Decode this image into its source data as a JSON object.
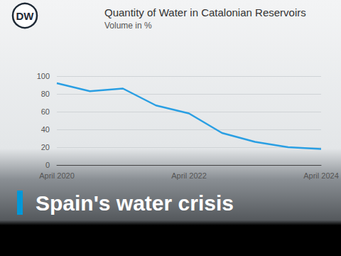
{
  "chart_data": {
    "type": "line",
    "title": "Quantity of Water in Catalonian Reservoirs",
    "subtitle": "Volume in %",
    "categories": [
      "April 2020",
      null,
      null,
      null,
      "April 2022",
      null,
      null,
      null,
      "April 2024"
    ],
    "values": [
      92,
      83,
      86,
      67,
      58,
      36,
      26,
      20,
      18
    ],
    "color": "#2a9fe3",
    "marker": "none",
    "ylim": [
      0,
      100
    ],
    "yticks": [
      0,
      20,
      40,
      60,
      80,
      100
    ],
    "grid": true
  },
  "logo": "DW",
  "headline": "Spain's water crisis"
}
